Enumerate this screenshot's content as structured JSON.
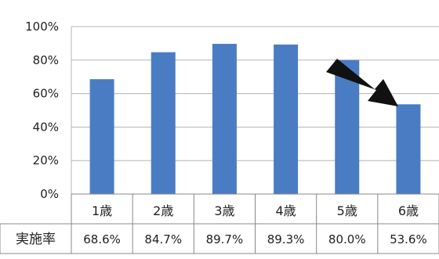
{
  "chart_data": {
    "type": "bar",
    "categories": [
      "1歳",
      "2歳",
      "3歳",
      "4歳",
      "5歳",
      "6歳"
    ],
    "series": [
      {
        "values": [
          68.6,
          84.7,
          89.7,
          89.3,
          80.0,
          53.6
        ]
      }
    ],
    "value_labels": [
      "68.6%",
      "84.7%",
      "89.7%",
      "89.3%",
      "80.0%",
      "53.6%"
    ],
    "table_row_header": "実施率",
    "yticks": [
      "0%",
      "20%",
      "40%",
      "60%",
      "80%",
      "100%"
    ],
    "ylim": [
      0,
      100
    ],
    "grid": true,
    "title": "",
    "xlabel": "",
    "ylabel": "",
    "annotation": {
      "type": "arrow",
      "points_to": "6歳"
    },
    "colors": {
      "bar": "#4a7cc4",
      "grid": "#b5b5b5",
      "arrow": "#111111",
      "table_border": "#888888"
    }
  }
}
